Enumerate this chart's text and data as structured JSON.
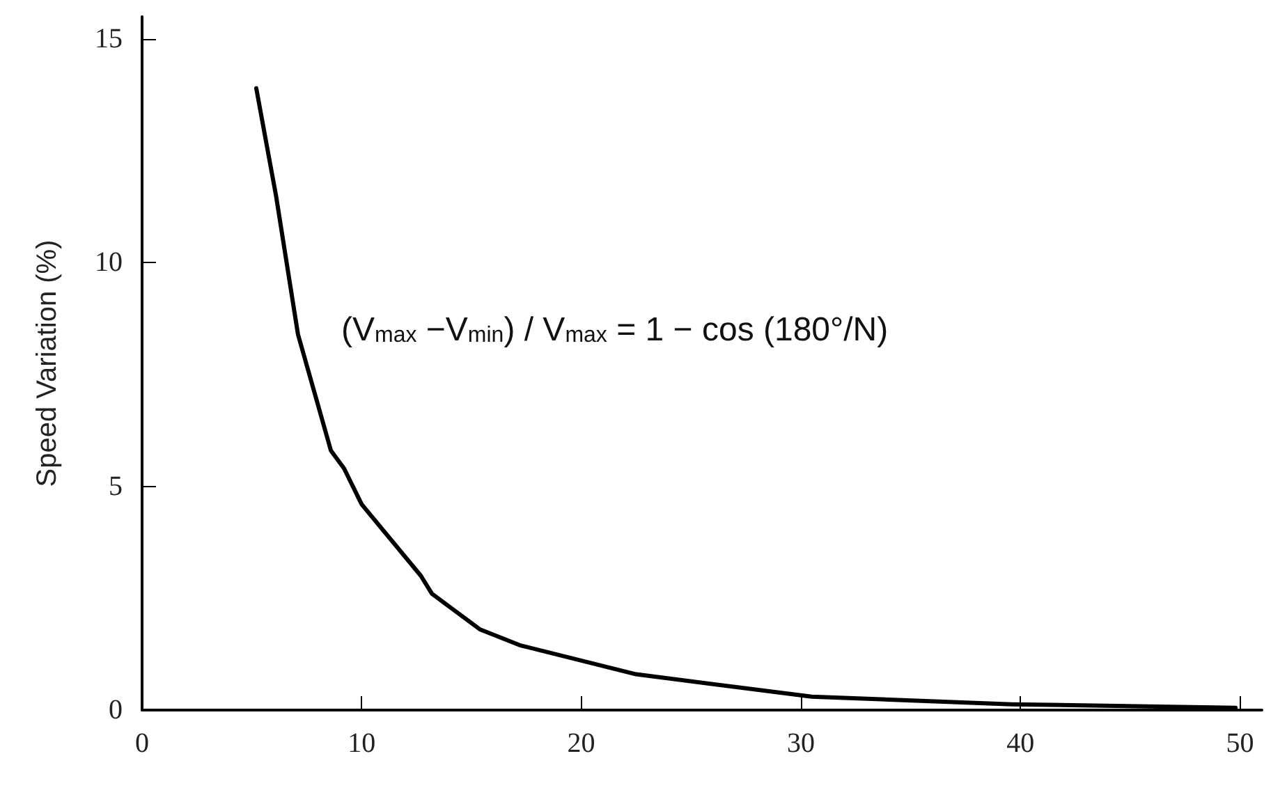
{
  "chart_data": {
    "type": "line",
    "ylabel": "Speed Variation (%)",
    "x": [
      5.2,
      6.1,
      7.1,
      8.6,
      9.2,
      10,
      12.7,
      13.2,
      15.4,
      17.2,
      22.5,
      30.5,
      39.6,
      49.8
    ],
    "series": [
      {
        "color": "#000000",
        "values": [
          13.9,
          11.5,
          8.4,
          5.8,
          5.4,
          4.6,
          3.0,
          2.6,
          1.8,
          1.45,
          0.8,
          0.3,
          0.13,
          0.05
        ]
      }
    ],
    "xlim": [
      0,
      51
    ],
    "xticks": [
      0,
      10,
      20,
      30,
      40,
      50
    ],
    "ylim": [
      0,
      15.5
    ],
    "yticks": [
      0,
      5,
      10,
      15
    ],
    "grid": false,
    "marker": "none",
    "line_style": "solid",
    "annotations": [
      "(V$_{max}$ −V$_{min}$) / V$_{max}$ = 1 − cos (180°/N)"
    ]
  }
}
